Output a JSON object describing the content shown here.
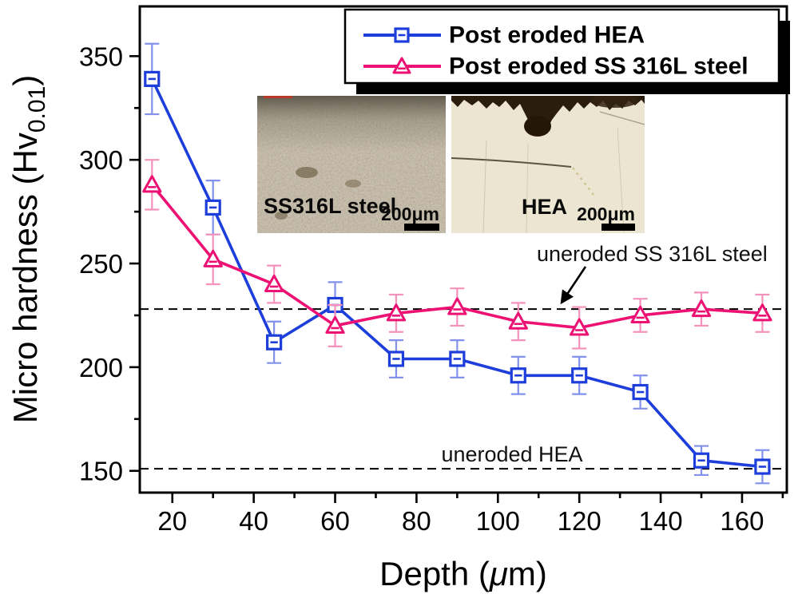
{
  "figure": {
    "ylabel_parts": {
      "main": "Micro hardness (Hv",
      "sub": "0.01",
      "close": ")"
    },
    "xlabel_parts": {
      "pre": "Depth (",
      "mu": "μ",
      "post": "m)"
    }
  },
  "insets": [
    {
      "label": "SS316L steel",
      "scale_label": "200μm"
    },
    {
      "label": "HEA",
      "scale_label": "200μm"
    }
  ],
  "chart_data": {
    "type": "line",
    "title": "",
    "xlabel": "Depth (μm)",
    "ylabel": "Micro hardness (Hv0.01)",
    "xlim": [
      12,
      171
    ],
    "ylim": [
      139.5,
      374
    ],
    "grid": false,
    "legend_position": "top-right",
    "x_ticks": [
      20,
      40,
      60,
      80,
      100,
      120,
      140,
      160
    ],
    "x_minor_ticks": [
      10,
      30,
      50,
      70,
      90,
      110,
      130,
      150,
      170
    ],
    "y_ticks": [
      150,
      200,
      250,
      300,
      350
    ],
    "y_minor_ticks": [
      175,
      225,
      275,
      325
    ],
    "x": [
      15,
      30,
      45,
      60,
      75,
      90,
      105,
      120,
      135,
      150,
      165
    ],
    "series": [
      {
        "name": "Post eroded HEA",
        "marker": "square",
        "color": "#1d3eda",
        "err_color": "#8191ec",
        "values": [
          339,
          277,
          212,
          230,
          204,
          204,
          196,
          196,
          188,
          155,
          152
        ],
        "errors": [
          17,
          13,
          10,
          11,
          9,
          9,
          9,
          9,
          8,
          7,
          8
        ]
      },
      {
        "name": "Post eroded SS 316L steel",
        "marker": "triangle",
        "color": "#ec1173",
        "err_color": "#f492bb",
        "values": [
          288,
          252,
          240,
          220,
          226,
          229,
          222,
          219,
          225,
          228,
          226
        ],
        "errors": [
          12,
          12,
          9,
          10,
          9,
          9,
          9,
          10,
          8,
          8,
          9
        ]
      }
    ],
    "reference_lines": [
      {
        "label": "uneroded SS 316L steel",
        "value": 228
      },
      {
        "label": "uneroded HEA",
        "value": 151
      }
    ]
  }
}
